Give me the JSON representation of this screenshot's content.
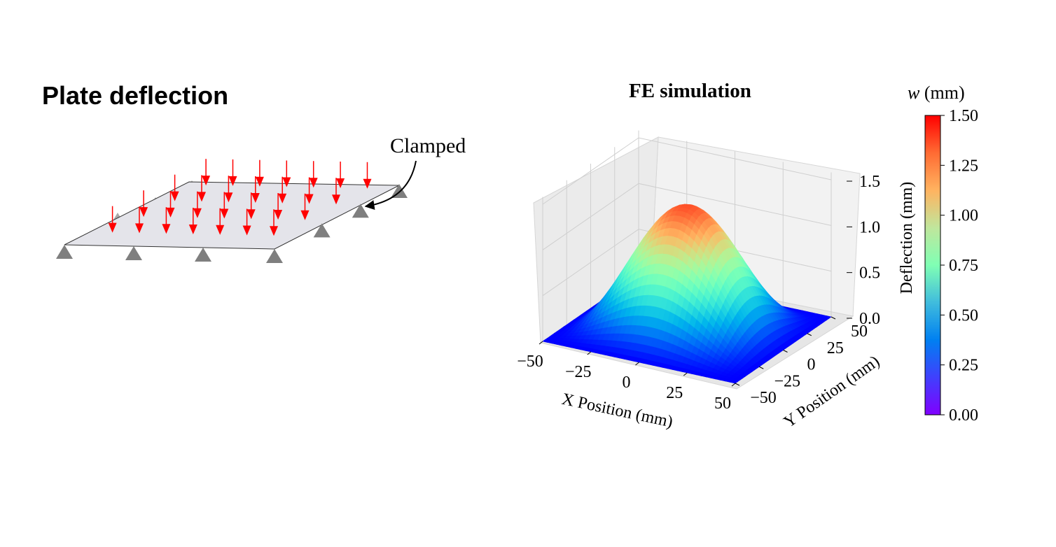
{
  "left_panel": {
    "title": "Plate deflection",
    "clamped_label": "Clamped"
  },
  "right_panel": {
    "title": "FE simulation"
  },
  "chart_data": {
    "type": "surface",
    "title": "FE simulation",
    "xlabel": "X Position (mm)",
    "ylabel": "Y Position (mm)",
    "zlabel": "Deflection (mm)",
    "x_ticks": [
      "−50",
      "−25",
      "0",
      "25",
      "50"
    ],
    "y_ticks": [
      "−50",
      "−25",
      "0",
      "25",
      "50"
    ],
    "z_ticks": [
      "0.0",
      "0.5",
      "1.0",
      "1.5"
    ],
    "xlim": [
      -50,
      50
    ],
    "ylim": [
      -50,
      50
    ],
    "zlim": [
      0,
      1.5
    ],
    "max_deflection": 1.35,
    "grid": true,
    "colormap": "rainbow",
    "colorbar": {
      "title_symbol": "w",
      "title_unit": "(mm)",
      "ticks": [
        "0.00",
        "0.25",
        "0.50",
        "0.75",
        "1.00",
        "1.25",
        "1.50"
      ],
      "range": [
        0,
        1.5
      ]
    }
  },
  "colors": {
    "load_arrow": "#ff0000",
    "support": "#7f7f7f",
    "plate": "#e4e4ea"
  }
}
